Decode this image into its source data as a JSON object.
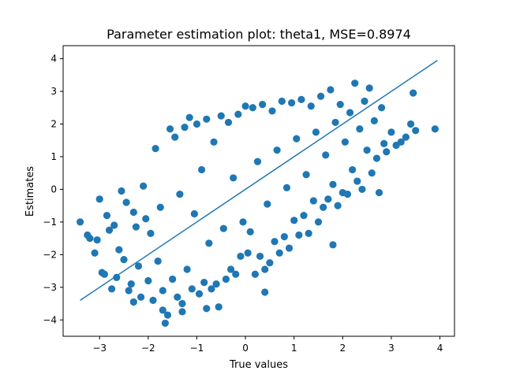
{
  "chart_data": {
    "type": "scatter",
    "title": "Parameter estimation plot: theta1, MSE=0.8974",
    "xlabel": "True values",
    "ylabel": "Estimates",
    "xlim": [
      -3.75,
      4.3
    ],
    "ylim": [
      -4.5,
      4.4
    ],
    "xticks": [
      -3,
      -2,
      -1,
      0,
      1,
      2,
      3,
      4
    ],
    "yticks": [
      -4,
      -3,
      -2,
      -1,
      0,
      1,
      2,
      3,
      4
    ],
    "xtick_labels": [
      "−3",
      "−2",
      "−1",
      "0",
      "1",
      "2",
      "3",
      "4"
    ],
    "ytick_labels": [
      "−4",
      "−3",
      "−2",
      "−1",
      "0",
      "1",
      "2",
      "3",
      "4"
    ],
    "grid": false,
    "color": "#1f77b4",
    "identity_line": {
      "x": [
        -3.4,
        3.95
      ],
      "y": [
        -3.4,
        3.95
      ]
    },
    "series": [
      {
        "points": [
          [
            -3.4,
            -1.0
          ],
          [
            -3.25,
            -1.4
          ],
          [
            -3.2,
            -1.5
          ],
          [
            -3.1,
            -1.95
          ],
          [
            -3.05,
            -1.55
          ],
          [
            -3.0,
            -0.3
          ],
          [
            -2.95,
            -2.55
          ],
          [
            -2.9,
            -2.6
          ],
          [
            -2.85,
            -0.8
          ],
          [
            -2.8,
            -1.25
          ],
          [
            -2.75,
            -3.05
          ],
          [
            -2.7,
            -1.1
          ],
          [
            -2.65,
            -2.7
          ],
          [
            -2.6,
            -1.85
          ],
          [
            -2.55,
            -0.05
          ],
          [
            -2.5,
            -2.15
          ],
          [
            -2.45,
            -0.4
          ],
          [
            -2.4,
            -3.1
          ],
          [
            -2.35,
            -2.9
          ],
          [
            -2.3,
            -0.7
          ],
          [
            -2.25,
            -1.15
          ],
          [
            -2.2,
            -2.35
          ],
          [
            -2.15,
            -3.3
          ],
          [
            -2.1,
            0.1
          ],
          [
            -2.05,
            -0.9
          ],
          [
            -2.0,
            -2.8
          ],
          [
            -1.95,
            -1.35
          ],
          [
            -1.9,
            -3.4
          ],
          [
            -1.85,
            1.25
          ],
          [
            -1.8,
            -2.2
          ],
          [
            -1.75,
            -0.55
          ],
          [
            -1.7,
            -3.1
          ],
          [
            -1.65,
            -4.1
          ],
          [
            -1.6,
            -3.85
          ],
          [
            -1.55,
            1.85
          ],
          [
            -1.5,
            -2.75
          ],
          [
            -1.45,
            1.6
          ],
          [
            -1.4,
            -3.3
          ],
          [
            -1.35,
            -0.15
          ],
          [
            -1.3,
            -3.5
          ],
          [
            -1.25,
            1.9
          ],
          [
            -1.2,
            -2.45
          ],
          [
            -1.15,
            2.2
          ],
          [
            -1.1,
            -3.05
          ],
          [
            -1.05,
            -0.75
          ],
          [
            -1.0,
            2.0
          ],
          [
            -0.95,
            -3.2
          ],
          [
            -0.9,
            0.6
          ],
          [
            -0.85,
            -2.85
          ],
          [
            -0.8,
            2.15
          ],
          [
            -0.75,
            -1.65
          ],
          [
            -0.7,
            -3.05
          ],
          [
            -0.65,
            1.45
          ],
          [
            -0.6,
            -2.9
          ],
          [
            -0.55,
            -3.6
          ],
          [
            -0.5,
            2.25
          ],
          [
            -0.45,
            -1.2
          ],
          [
            -0.4,
            -2.75
          ],
          [
            -0.35,
            2.05
          ],
          [
            -0.3,
            -2.45
          ],
          [
            -0.25,
            0.35
          ],
          [
            -0.2,
            -2.6
          ],
          [
            -0.15,
            2.3
          ],
          [
            -0.1,
            -2.05
          ],
          [
            -0.05,
            -1.0
          ],
          [
            0.0,
            2.55
          ],
          [
            0.05,
            -1.95
          ],
          [
            0.1,
            -1.3
          ],
          [
            0.15,
            2.5
          ],
          [
            0.2,
            -2.6
          ],
          [
            0.25,
            0.85
          ],
          [
            0.3,
            -2.05
          ],
          [
            0.35,
            2.6
          ],
          [
            0.4,
            -2.45
          ],
          [
            0.45,
            -0.45
          ],
          [
            0.5,
            -2.25
          ],
          [
            0.55,
            2.4
          ],
          [
            0.6,
            -1.6
          ],
          [
            0.65,
            1.2
          ],
          [
            0.7,
            -1.95
          ],
          [
            0.75,
            2.7
          ],
          [
            0.8,
            -1.45
          ],
          [
            0.85,
            0.05
          ],
          [
            0.9,
            -1.8
          ],
          [
            0.95,
            2.65
          ],
          [
            1.0,
            -0.95
          ],
          [
            1.05,
            1.55
          ],
          [
            1.1,
            -1.4
          ],
          [
            1.15,
            2.75
          ],
          [
            1.2,
            -0.8
          ],
          [
            1.25,
            0.45
          ],
          [
            1.3,
            -1.35
          ],
          [
            1.35,
            2.55
          ],
          [
            1.4,
            -0.35
          ],
          [
            1.45,
            1.75
          ],
          [
            1.5,
            -1.0
          ],
          [
            1.55,
            2.85
          ],
          [
            1.6,
            -0.55
          ],
          [
            1.65,
            1.05
          ],
          [
            1.7,
            -0.3
          ],
          [
            1.75,
            3.05
          ],
          [
            1.8,
            0.15
          ],
          [
            1.85,
            2.05
          ],
          [
            1.9,
            -0.5
          ],
          [
            1.95,
            2.6
          ],
          [
            2.0,
            -0.1
          ],
          [
            2.05,
            1.45
          ],
          [
            2.1,
            -0.15
          ],
          [
            2.15,
            2.35
          ],
          [
            2.2,
            0.6
          ],
          [
            2.25,
            3.25
          ],
          [
            2.3,
            0.25
          ],
          [
            2.35,
            1.85
          ],
          [
            2.4,
            0.0
          ],
          [
            2.45,
            2.7
          ],
          [
            2.5,
            1.2
          ],
          [
            2.55,
            3.1
          ],
          [
            2.6,
            0.5
          ],
          [
            2.65,
            2.1
          ],
          [
            2.7,
            0.95
          ],
          [
            2.75,
            -0.1
          ],
          [
            2.8,
            2.5
          ],
          [
            2.85,
            1.4
          ],
          [
            2.9,
            1.15
          ],
          [
            3.0,
            1.75
          ],
          [
            3.1,
            1.35
          ],
          [
            3.2,
            1.45
          ],
          [
            3.3,
            1.6
          ],
          [
            3.4,
            2.0
          ],
          [
            3.45,
            2.95
          ],
          [
            3.5,
            1.8
          ],
          [
            3.9,
            1.85
          ],
          [
            1.8,
            -1.7
          ],
          [
            -0.8,
            -3.65
          ],
          [
            -1.3,
            -3.75
          ],
          [
            0.4,
            -3.15
          ],
          [
            -2.3,
            -3.45
          ],
          [
            -1.7,
            -3.7
          ]
        ]
      }
    ]
  }
}
